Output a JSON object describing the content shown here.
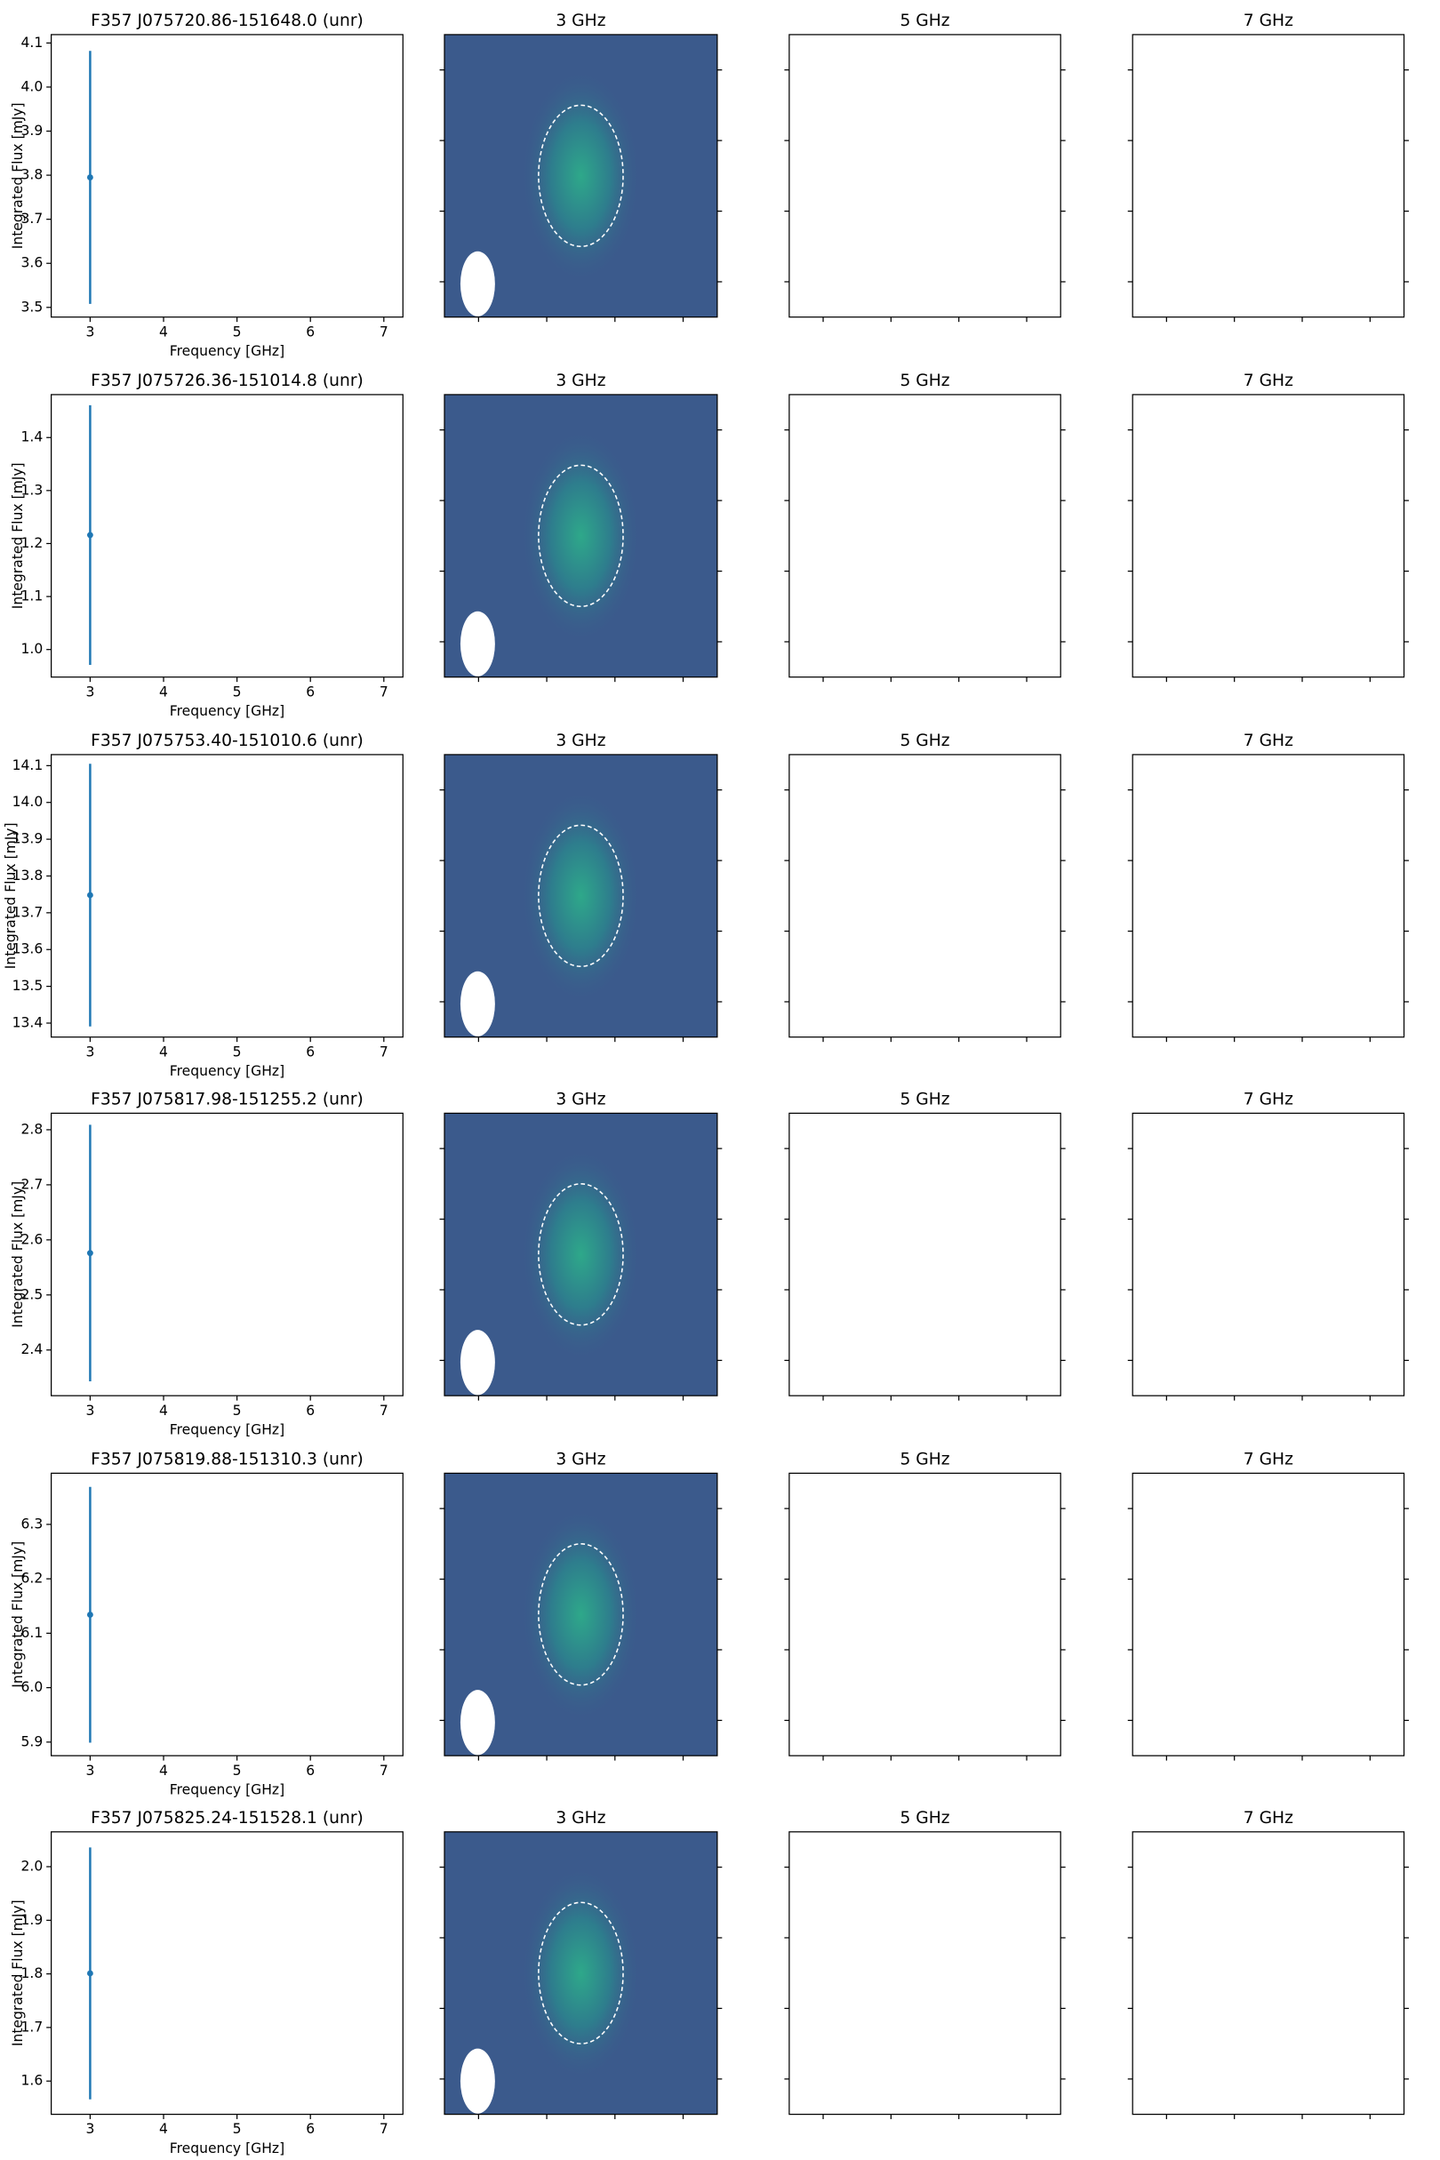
{
  "chart_data": [
    {
      "type": "errorbar",
      "title": "F357 J075720.86-151648.0 (unr)",
      "x_label": "Frequency [GHz]",
      "y_label": "Integrated Flux [mJy]",
      "color": "#1f77b4",
      "x": [
        3
      ],
      "values": [
        3.795
      ],
      "errors": [
        0.287
      ],
      "xlim": [
        2.47,
        7.26
      ],
      "xticks": [
        3,
        4,
        5,
        6,
        7
      ],
      "ylim": [
        3.478,
        4.119
      ],
      "yticks": [
        3.5,
        3.6,
        3.7,
        3.8,
        3.9,
        {
          "value": 4,
          "label": "4.0"
        },
        4.1
      ],
      "image_titles": [
        "3 GHz",
        "5 GHz",
        "7 GHz"
      ]
    },
    {
      "type": "errorbar",
      "title": "F357 J075726.36-151014.8 (unr)",
      "x_label": "Frequency [GHz]",
      "y_label": "Integrated Flux [mJy]",
      "color": "#1f77b4",
      "x": [
        3
      ],
      "values": [
        1.216
      ],
      "errors": [
        0.245
      ],
      "xlim": [
        2.47,
        7.26
      ],
      "xticks": [
        3,
        4,
        5,
        6,
        7
      ],
      "ylim": [
        0.948,
        1.481
      ],
      "yticks": [
        {
          "value": 1,
          "label": "1.0"
        },
        1.1,
        1.2,
        1.3,
        1.4
      ],
      "image_titles": [
        "3 GHz",
        "5 GHz",
        "7 GHz"
      ]
    },
    {
      "type": "errorbar",
      "title": "F357 J075753.40-151010.6 (unr)",
      "x_label": "Frequency [GHz]",
      "y_label": "Integrated Flux [mJy]",
      "color": "#1f77b4",
      "x": [
        3
      ],
      "values": [
        13.748
      ],
      "errors": [
        0.357
      ],
      "xlim": [
        2.47,
        7.26
      ],
      "xticks": [
        3,
        4,
        5,
        6,
        7
      ],
      "ylim": [
        13.362,
        14.13
      ],
      "yticks": [
        13.4,
        13.5,
        13.6,
        13.7,
        13.8,
        13.9,
        {
          "value": 14,
          "label": "14.0"
        },
        14.1
      ],
      "image_titles": [
        "3 GHz",
        "5 GHz",
        "7 GHz"
      ]
    },
    {
      "type": "errorbar",
      "title": "F357 J075817.98-151255.2 (unr)",
      "x_label": "Frequency [GHz]",
      "y_label": "Integrated Flux [mJy]",
      "color": "#1f77b4",
      "x": [
        3
      ],
      "values": [
        2.576
      ],
      "errors": [
        0.233
      ],
      "xlim": [
        2.47,
        7.26
      ],
      "xticks": [
        3,
        4,
        5,
        6,
        7
      ],
      "ylim": [
        2.317,
        2.83
      ],
      "yticks": [
        2.4,
        2.5,
        2.6,
        2.7,
        2.8
      ],
      "image_titles": [
        "3 GHz",
        "5 GHz",
        "7 GHz"
      ]
    },
    {
      "type": "errorbar",
      "title": "F357 J075819.88-151310.3 (unr)",
      "x_label": "Frequency [GHz]",
      "y_label": "Integrated Flux [mJy]",
      "color": "#1f77b4",
      "x": [
        3
      ],
      "values": [
        6.134
      ],
      "errors": [
        0.235
      ],
      "xlim": [
        2.47,
        7.26
      ],
      "xticks": [
        3,
        4,
        5,
        6,
        7
      ],
      "ylim": [
        5.875,
        6.394
      ],
      "yticks": [
        5.9,
        {
          "value": 6,
          "label": "6.0"
        },
        6.1,
        6.2,
        6.3
      ],
      "image_titles": [
        "3 GHz",
        "5 GHz",
        "7 GHz"
      ]
    },
    {
      "type": "errorbar",
      "title": "F357 J075825.24-151528.1 (unr)",
      "x_label": "Frequency [GHz]",
      "y_label": "Integrated Flux [mJy]",
      "color": "#1f77b4",
      "x": [
        3
      ],
      "values": [
        1.801
      ],
      "errors": [
        0.235
      ],
      "xlim": [
        2.47,
        7.26
      ],
      "xticks": [
        3,
        4,
        5,
        6,
        7
      ],
      "ylim": [
        1.538,
        2.065
      ],
      "yticks": [
        1.6,
        1.7,
        1.8,
        1.9,
        {
          "value": 2,
          "label": "2.0"
        }
      ],
      "image_titles": [
        "3 GHz",
        "5 GHz",
        "7 GHz"
      ]
    }
  ]
}
